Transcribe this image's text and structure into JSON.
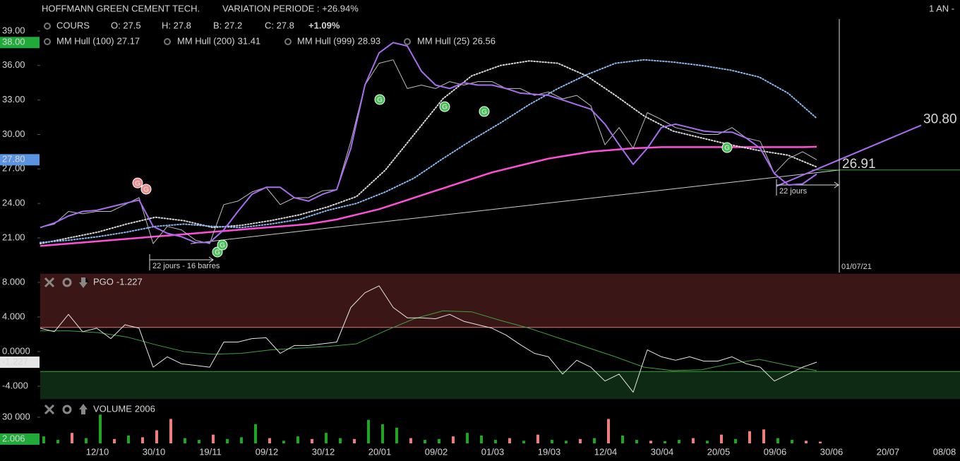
{
  "header": {
    "title": "HOFFMANN GREEN CEMENT TECH.",
    "variation": "VARIATION PERIODE : +26.94%",
    "period": "1 AN -"
  },
  "x_axis": {
    "labels": [
      "12/10",
      "30/10",
      "19/11",
      "09/12",
      "30/12",
      "20/01",
      "09/02",
      "01/03",
      "19/03",
      "12/04",
      "30/04",
      "20/05",
      "09/06",
      "30/06",
      "20/07",
      "08/08"
    ]
  },
  "chart_data": [
    {
      "type": "line",
      "ylim": [
        18,
        40
      ],
      "yticks": [
        {
          "value": 21,
          "label": "21.00"
        },
        {
          "value": 24,
          "label": "24.00"
        },
        {
          "value": 27,
          "label": "27.00"
        },
        {
          "value": 30,
          "label": "30.00"
        },
        {
          "value": 33,
          "label": "33.00"
        },
        {
          "value": 36,
          "label": "36.00"
        },
        {
          "value": 39,
          "label": "39.00"
        }
      ],
      "markers": [
        {
          "value": 38,
          "label": "38.00",
          "color": "#1faa3a"
        },
        {
          "value": 27.8,
          "label": "27.80",
          "color": "#5a93e0"
        }
      ],
      "series": [
        {
          "name": "COURS",
          "color": "#bdbdbd",
          "width": 1,
          "ohlc": [
            "O: 27.5",
            "H: 27.8",
            "B: 27.2",
            "C: 27.8"
          ],
          "change": "+1.09%",
          "change_color": "#3fcf4f",
          "values": [
            21.9,
            22.2,
            23.3,
            23.1,
            23.3,
            23.3,
            23.9,
            24.5,
            20.5,
            22.0,
            21.7,
            20.8,
            20.5,
            23.9,
            24.2,
            25.0,
            25.4,
            23.9,
            24.5,
            24.5,
            25.1,
            25.2,
            29.4,
            34.3,
            36.2,
            36.5,
            34.0,
            34.3,
            34.0,
            34.6,
            34.3,
            34.6,
            34.6,
            34.0,
            34.0,
            33.4,
            33.7,
            33.1,
            33.4,
            32.5,
            29.1,
            30.6,
            28.8,
            31.9,
            31.3,
            30.6,
            30.3,
            30.0,
            30.0,
            30.6,
            29.7,
            29.4,
            26.6,
            27.9,
            28.5,
            27.8
          ]
        },
        {
          "name": "MM Hull (100)",
          "color": "#d8d8d8",
          "width": 2,
          "style": "dotted",
          "values": [
            20.5,
            21.0,
            21.5,
            22.2,
            22.8,
            22.5,
            21.9,
            22.1,
            22.5,
            23.0,
            23.7,
            24.6,
            26.9,
            30.0,
            33.1,
            35.1,
            36.0,
            36.4,
            36.2,
            35.1,
            33.4,
            31.6,
            30.3,
            29.7,
            29.1,
            28.6,
            28.2,
            27.17
          ]
        },
        {
          "name": "MM Hull (200)",
          "color": "#8ab8f0",
          "width": 2,
          "style": "dotted",
          "values": [
            20.6,
            20.8,
            21.1,
            21.5,
            22.0,
            22.2,
            22.0,
            21.9,
            22.2,
            22.6,
            23.4,
            24.0,
            25.0,
            26.2,
            27.9,
            29.5,
            31.0,
            32.6,
            34.0,
            35.2,
            36.2,
            36.5,
            36.3,
            36.0,
            35.6,
            35.0,
            33.6,
            31.41
          ]
        },
        {
          "name": "MM Hull (999)",
          "color": "#ff4fd8",
          "width": 2.5,
          "values": [
            20.3,
            20.4,
            20.5,
            20.6,
            20.7,
            20.8,
            20.9,
            21.0,
            21.1,
            21.2,
            21.3,
            21.4,
            21.5,
            21.6,
            21.7,
            21.8,
            21.9,
            22.0,
            22.1,
            22.2,
            22.4,
            22.6,
            22.9,
            23.2,
            23.5,
            23.9,
            24.3,
            24.7,
            25.1,
            25.5,
            25.9,
            26.3,
            26.7,
            27.0,
            27.3,
            27.6,
            27.9,
            28.1,
            28.3,
            28.5,
            28.6,
            28.7,
            28.8,
            28.85,
            28.9,
            28.9,
            28.9,
            28.9,
            28.9,
            28.9,
            28.9,
            28.9,
            28.9,
            28.9,
            28.9,
            28.93
          ]
        },
        {
          "name": "MM Hull (25)",
          "color": "#a86cf0",
          "width": 2,
          "values": [
            21.9,
            22.3,
            22.9,
            23.3,
            23.4,
            23.7,
            24.0,
            24.3,
            22.0,
            21.4,
            21.1,
            20.6,
            20.6,
            21.7,
            23.3,
            24.8,
            25.4,
            25.4,
            24.5,
            24.2,
            24.8,
            25.2,
            28.8,
            34.3,
            37.1,
            38.0,
            37.7,
            35.5,
            34.3,
            34.0,
            34.5,
            34.3,
            34.3,
            34.0,
            33.6,
            33.5,
            33.4,
            33.0,
            32.6,
            32.2,
            30.9,
            29.1,
            27.4,
            28.8,
            30.6,
            30.9,
            30.6,
            30.3,
            30.2,
            30.2,
            29.7,
            28.8,
            26.6,
            25.6,
            25.7,
            26.56
          ]
        }
      ],
      "trendlines": [
        {
          "values": [
            20.5,
            26.91
          ],
          "color": "#d0d0d0",
          "level_color": "#3fa63f"
        },
        {
          "values": [
            25.5,
            30.8
          ],
          "end_label": "30.80",
          "color": "#a86cf0",
          "label_color": "#ff6b6b"
        }
      ],
      "signals": [
        {
          "x": 6.9,
          "value": 25.78,
          "label": "G",
          "color": "#f08a8a"
        },
        {
          "x": 7.5,
          "value": 25.24,
          "label": "G",
          "color": "#f08a8a"
        },
        {
          "x": 12.55,
          "value": 19.77,
          "label": "G",
          "color": "#3fc24f"
        },
        {
          "x": 12.9,
          "value": 20.38,
          "label": "G",
          "color": "#3fc24f"
        },
        {
          "x": 24.05,
          "value": 33.04,
          "label": "G",
          "color": "#3fc24f"
        },
        {
          "x": 28.65,
          "value": 32.42,
          "label": "G",
          "color": "#3fc24f"
        },
        {
          "x": 31.45,
          "value": 32.0,
          "label": "G",
          "color": "#3fc24f"
        },
        {
          "x": 48.65,
          "value": 28.86,
          "label": "G",
          "color": "#3fc24f"
        }
      ],
      "annotations": {
        "measure_1": "22 jours - 16 barres",
        "measure_2": "22 jours",
        "cursor_date": "01/07/21"
      }
    },
    {
      "type": "line",
      "ylim": [
        -5.5,
        9
      ],
      "yticks": [
        {
          "value": 8,
          "label": "8.000"
        },
        {
          "value": 4,
          "label": "4.000"
        },
        {
          "value": 0,
          "label": "0.0000"
        },
        {
          "value": -4,
          "label": "-4.000"
        }
      ],
      "bands": [
        {
          "from": 2.8,
          "to": 9,
          "color": "#3a1616",
          "line": "#e07a7a"
        },
        {
          "from": -5.5,
          "to": -2.3,
          "color": "#0f2a14",
          "line": "#3fa63f"
        }
      ],
      "series": [
        {
          "name": "PGO",
          "color": "#e6e6e6",
          "width": 1,
          "values": [
            2.7,
            2.3,
            4.3,
            2.3,
            2.7,
            1.5,
            3.1,
            2.7,
            -1.8,
            -0.6,
            -1.4,
            -1.6,
            -1.8,
            1.1,
            1.1,
            1.5,
            1.6,
            -0.2,
            0.7,
            0.7,
            0.9,
            1.1,
            5.1,
            6.8,
            7.6,
            5.1,
            3.9,
            3.9,
            3.8,
            4.3,
            3.5,
            3.1,
            2.7,
            1.9,
            0.8,
            -0.2,
            -0.6,
            -2.6,
            -1.0,
            -1.8,
            -3.4,
            -2.6,
            -4.7,
            0.2,
            -0.6,
            -1.0,
            -0.6,
            -1.1,
            -1.1,
            -0.6,
            -1.4,
            -1.8,
            -3.4,
            -2.6,
            -1.8,
            -1.227
          ]
        },
        {
          "color": "#3fa03f",
          "width": 1,
          "values": [
            2.4,
            2.4,
            2.2,
            1.7,
            0.8,
            0.0,
            -0.3,
            -0.2,
            0.2,
            0.4,
            0.6,
            0.9,
            2.4,
            3.8,
            4.7,
            4.6,
            3.6,
            2.7,
            1.6,
            0.5,
            -0.6,
            -1.8,
            -2.2,
            -2.1,
            -1.4,
            -0.9,
            -1.6,
            -2.2
          ]
        }
      ]
    },
    {
      "type": "bar",
      "title": "VOLUME",
      "ylim": [
        0,
        45000
      ],
      "yticks": [
        {
          "value": 30000,
          "label": "30 000"
        }
      ],
      "last_label": "2.006",
      "marker_color": "#1faa3a",
      "up_color": "#1fa81f",
      "down_color": "#f07c7c",
      "values": [
        8000,
        4000,
        12000,
        6000,
        33000,
        5000,
        9000,
        7000,
        15000,
        28000,
        6000,
        4000,
        10000,
        5000,
        7000,
        22000,
        6000,
        3000,
        8000,
        5000,
        12000,
        6000,
        5000,
        27000,
        22000,
        18000,
        6000,
        4000,
        5000,
        8000,
        12000,
        9000,
        4000,
        6000,
        3000,
        10000,
        4000,
        3000,
        5000,
        6000,
        28000,
        9000,
        4000,
        3000,
        2500,
        4000,
        6000,
        3000,
        10000,
        5000,
        14000,
        16000,
        6000,
        4000,
        3000,
        2006
      ],
      "up": [
        true,
        true,
        false,
        true,
        true,
        false,
        true,
        false,
        false,
        false,
        true,
        true,
        false,
        true,
        true,
        true,
        false,
        true,
        true,
        false,
        true,
        true,
        false,
        true,
        true,
        true,
        false,
        true,
        true,
        false,
        true,
        true,
        true,
        false,
        true,
        false,
        true,
        true,
        false,
        true,
        false,
        true,
        true,
        false,
        true,
        true,
        false,
        true,
        false,
        true,
        false,
        false,
        true,
        true,
        false,
        false
      ]
    }
  ]
}
